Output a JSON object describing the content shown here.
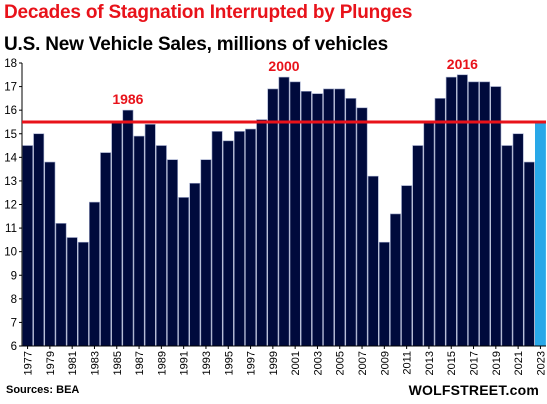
{
  "title": "Decades of Stagnation  Interrupted by Plunges",
  "subtitle": "U.S. New Vehicle Sales, millions of vehicles",
  "source": "Sources: BEA",
  "brand": "WOLFSTREET.com",
  "colors": {
    "bar": "#000a3c",
    "bar_stroke": "#9aa3c6",
    "highlight": "#29a8e8",
    "reference_line": "#e8121a",
    "annotation": "#e8121a"
  },
  "chart_data": {
    "type": "bar",
    "categories": [
      "1977",
      "1978",
      "1979",
      "1980",
      "1981",
      "1982",
      "1983",
      "1984",
      "1985",
      "1986",
      "1987",
      "1988",
      "1989",
      "1990",
      "1991",
      "1992",
      "1993",
      "1994",
      "1995",
      "1996",
      "1997",
      "1998",
      "1999",
      "2000",
      "2001",
      "2002",
      "2003",
      "2004",
      "2005",
      "2006",
      "2007",
      "2008",
      "2009",
      "2010",
      "2011",
      "2012",
      "2013",
      "2014",
      "2015",
      "2016",
      "2017",
      "2018",
      "2019",
      "2020",
      "2021",
      "2022",
      "2023"
    ],
    "values": [
      14.5,
      15.0,
      13.8,
      11.2,
      10.6,
      10.4,
      12.1,
      14.2,
      15.5,
      16.0,
      14.9,
      15.4,
      14.5,
      13.9,
      12.3,
      12.9,
      13.9,
      15.1,
      14.7,
      15.1,
      15.2,
      15.6,
      16.9,
      17.4,
      17.2,
      16.8,
      16.7,
      16.9,
      16.9,
      16.5,
      16.1,
      13.2,
      10.4,
      11.6,
      12.8,
      14.5,
      15.5,
      16.5,
      17.4,
      17.5,
      17.2,
      17.2,
      17.0,
      14.5,
      15.0,
      13.8,
      15.5
    ],
    "highlight_category": "2023",
    "reference_line": 15.5,
    "ylim": [
      6,
      18
    ],
    "y_ticks": [
      6,
      7,
      8,
      9,
      10,
      11,
      12,
      13,
      14,
      15,
      16,
      17,
      18
    ],
    "x_tick_labels": [
      "1977",
      "1979",
      "1981",
      "1983",
      "1985",
      "1987",
      "1989",
      "1991",
      "1993",
      "1995",
      "1997",
      "1999",
      "2001",
      "2003",
      "2005",
      "2007",
      "2009",
      "2011",
      "2013",
      "2015",
      "2017",
      "2019",
      "2021",
      "2023"
    ],
    "annotations": [
      {
        "category": "1986",
        "text": "1986"
      },
      {
        "category": "2000",
        "text": "2000"
      },
      {
        "category": "2016",
        "text": "2016"
      }
    ],
    "grid": false,
    "xlabel": "",
    "ylabel": ""
  }
}
